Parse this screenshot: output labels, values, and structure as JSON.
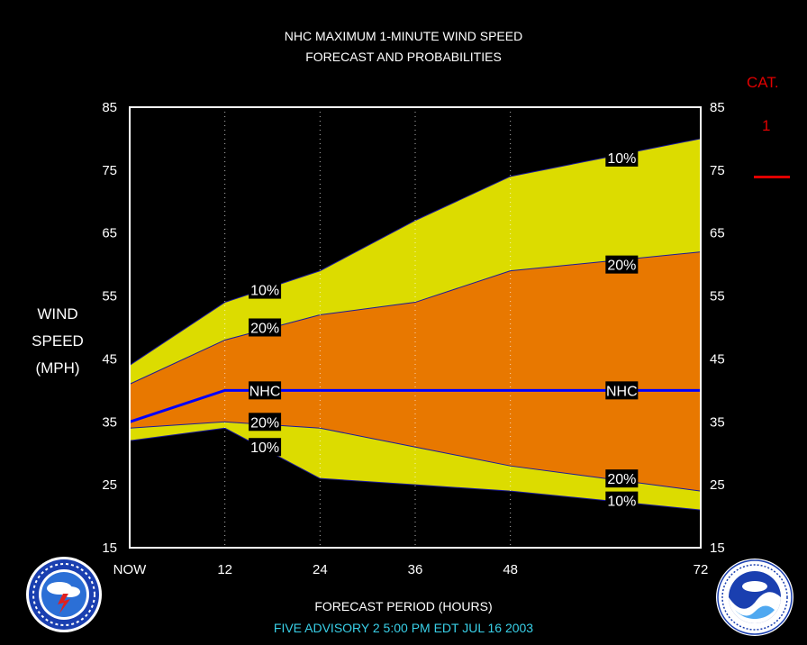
{
  "header": {
    "line1": "NHC MAXIMUM 1-MINUTE WIND SPEED",
    "line2": "FORECAST AND PROBABILITIES"
  },
  "axis": {
    "ylabel_lines": [
      "WIND",
      "SPEED",
      "(MPH)"
    ],
    "xlabel": "FORECAST PERIOD (HOURS)",
    "x_tick_labels": [
      "NOW",
      "12",
      "24",
      "36",
      "48",
      "72"
    ],
    "x_ticks": [
      0,
      12,
      24,
      36,
      48,
      72
    ],
    "y_ticks": [
      15,
      25,
      35,
      45,
      55,
      65,
      75,
      85
    ]
  },
  "category": {
    "label": "CAT.",
    "value": "1",
    "line_color": "#e00000"
  },
  "footer": {
    "text": "FIVE   ADVISORY  2 5:00  PM  EDT  JUL  16  2003"
  },
  "logos": {
    "left_name": "NATIONAL WEATHER SERVICE",
    "right_name": "NOAA"
  },
  "colors": {
    "outer_band": "#dcdc00",
    "inner_band": "#e87800",
    "nhc_line": "#0000ff",
    "grid_dotted": "#ffffff",
    "footer_text": "#39d0e8"
  },
  "chart_data": {
    "type": "area",
    "title": "NHC MAXIMUM 1-MINUTE WIND SPEED FORECAST AND PROBABILITIES",
    "xlabel": "FORECAST PERIOD (HOURS)",
    "ylabel": "WIND SPEED (MPH)",
    "xlim": [
      0,
      72
    ],
    "ylim": [
      15,
      85
    ],
    "x": [
      0,
      12,
      24,
      36,
      48,
      72
    ],
    "series": [
      {
        "name": "10%",
        "values": [
          44,
          54,
          59,
          67,
          74,
          80
        ]
      },
      {
        "name": "20%",
        "values": [
          41,
          48,
          52,
          54,
          59,
          62
        ]
      },
      {
        "name": "NHC",
        "values": [
          35,
          40,
          40,
          40,
          40,
          40
        ]
      },
      {
        "name": "20%",
        "values": [
          34,
          35,
          34,
          31,
          28,
          24
        ]
      },
      {
        "name": "10%",
        "values": [
          32,
          34,
          26,
          25,
          24,
          21
        ]
      }
    ],
    "series_labels": [
      {
        "text": "10%",
        "x": 15,
        "y": 56
      },
      {
        "text": "20%",
        "x": 15,
        "y": 50
      },
      {
        "text": "NHC",
        "x": 15,
        "y": 40
      },
      {
        "text": "20%",
        "x": 15,
        "y": 35
      },
      {
        "text": "10%",
        "x": 15,
        "y": 31
      },
      {
        "text": "10%",
        "x": 60,
        "y": 77
      },
      {
        "text": "20%",
        "x": 60,
        "y": 60
      },
      {
        "text": "NHC",
        "x": 60,
        "y": 40
      },
      {
        "text": "20%",
        "x": 60,
        "y": 26
      },
      {
        "text": "10%",
        "x": 60,
        "y": 22.5
      }
    ],
    "grid": "dotted vertical at x ticks",
    "legend": "none"
  }
}
